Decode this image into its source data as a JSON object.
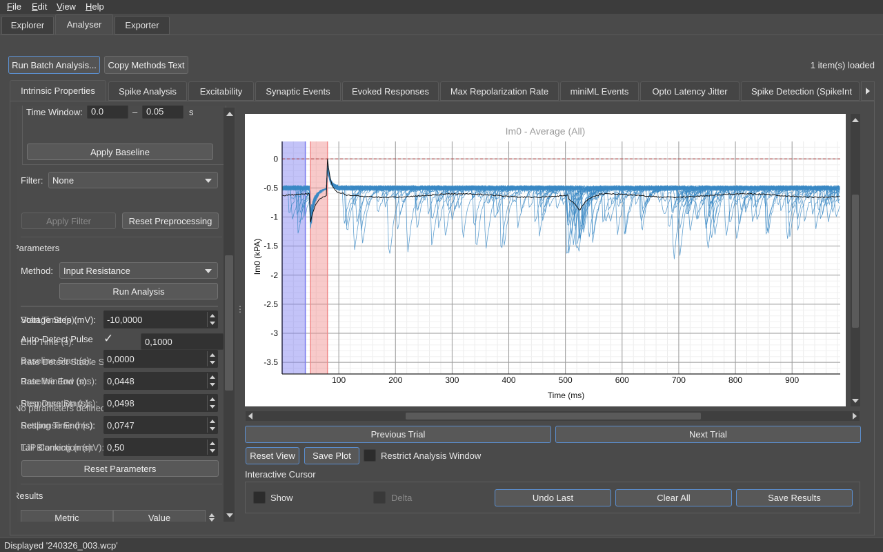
{
  "menu": [
    "File",
    "Edit",
    "View",
    "Help"
  ],
  "main_tabs": [
    "Explorer",
    "Analyser",
    "Exporter"
  ],
  "toolbar": {
    "run_batch": "Run Batch Analysis...",
    "copy_methods": "Copy Methods Text",
    "items_loaded": "1 item(s) loaded"
  },
  "analysis_tabs": [
    "Intrinsic Properties",
    "Spike Analysis",
    "Excitability",
    "Synaptic Events",
    "Evoked Responses",
    "Max Repolarization Rate",
    "miniML Events",
    "Opto Latency Jitter",
    "Spike Detection (SpikeInt"
  ],
  "left": {
    "time_window_label": "Time Window:",
    "time_window_start": "0.0",
    "time_window_dash": "–",
    "time_window_end": "0.05",
    "time_window_unit": "s",
    "apply_baseline": "Apply Baseline",
    "filter_label": "Filter:",
    "filter_value": "None",
    "apply_filter": "Apply Filter",
    "reset_preprocessing": "Reset Preprocessing",
    "parameters_header": "Parameters",
    "method_label": "Method:",
    "method_value": "Input Resistance",
    "run_analysis": "Run Analysis",
    "rows": [
      {
        "label": "Voltage Step (mV):",
        "overlap": "Start Time (s):",
        "value": "-10,0000"
      },
      {
        "label": "Auto-Detect Pulse",
        "overlap": "End Time (s):",
        "value": "0,1000"
      },
      {
        "label": "Baseline Start (s):",
        "overlap": "Rate Detect Stable S",
        "value": "0,0000"
      },
      {
        "label": "Baseline End (s):",
        "overlap": "Rate Window (ms):",
        "value": "0,0448"
      },
      {
        "label": "Response Start (s):",
        "overlap": "Step Duration (s):",
        "value": "0,0498"
      },
      {
        "label": "Response End (s):",
        "overlap": "Settling Time (ms):",
        "value": "0,0747"
      },
      {
        "label": "LJP Correction (mV):",
        "overlap": "Tail Blanking (ms):",
        "value": "0,50"
      }
    ],
    "no_params_text": "No parameters defined.",
    "reset_parameters": "Reset Parameters",
    "results_header": "Results",
    "results_columns": [
      "Metric",
      "Value"
    ]
  },
  "plot": {
    "title": "Im0 - Average (All)",
    "ylabel": "Im0 (kPA)",
    "xlabel": "Time (ms)"
  },
  "chart_data": {
    "type": "line",
    "title": "Im0 - Average (All)",
    "xlabel": "Time (ms)",
    "ylabel": "Im0 (kPA)",
    "xlim": [
      0,
      985
    ],
    "ylim": [
      -3.7,
      0.3
    ],
    "xticks": [
      100,
      200,
      300,
      400,
      500,
      600,
      700,
      800,
      900
    ],
    "yticks": [
      0,
      -0.5,
      -1,
      -1.5,
      -2,
      -2.5,
      -3,
      -3.5
    ],
    "grid": true,
    "regions": [
      {
        "name": "baseline",
        "from": 0,
        "to": 41,
        "color": "#7b7bf0"
      },
      {
        "name": "response",
        "from": 50,
        "to": 80,
        "color": "#f08a8a"
      }
    ],
    "reference_line": {
      "y": 0,
      "color": "#b03030"
    },
    "series": [
      {
        "role": "trials",
        "color": "#3a88c4"
      },
      {
        "role": "average",
        "color": "#111111"
      }
    ]
  },
  "nav": {
    "prev_trial": "Previous Trial",
    "next_trial": "Next Trial",
    "reset_view": "Reset View",
    "save_plot": "Save Plot",
    "restrict_window": "Restrict Analysis Window",
    "interactive_cursor": "Interactive Cursor",
    "show": "Show",
    "delta": "Delta",
    "undo_last": "Undo Last",
    "clear_all": "Clear All",
    "save_results": "Save Results"
  },
  "status": "Displayed '240326_003.wcp'"
}
